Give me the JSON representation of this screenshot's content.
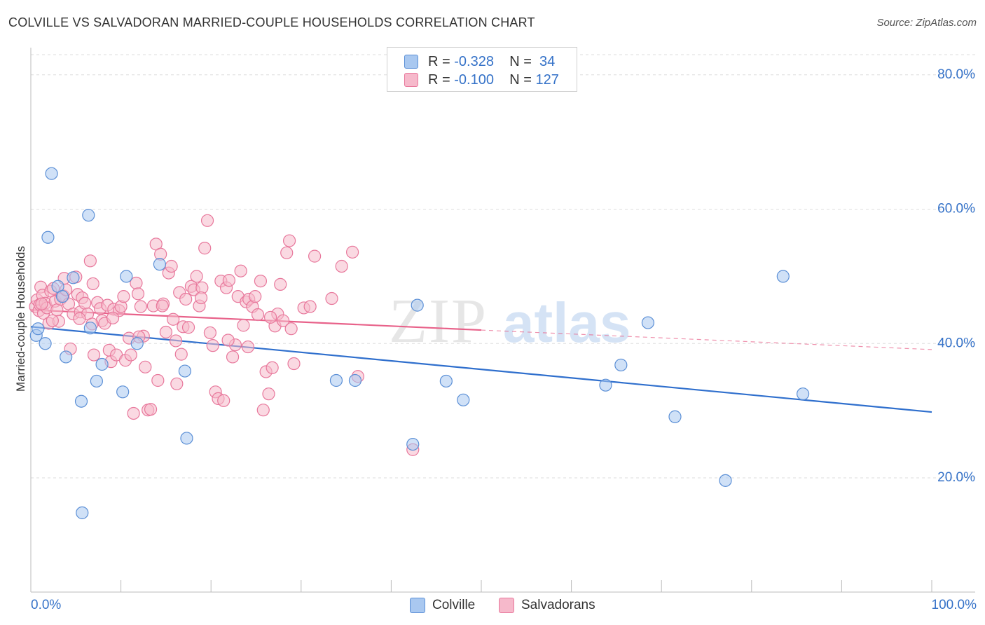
{
  "title": "COLVILLE VS SALVADORAN MARRIED-COUPLE HOUSEHOLDS CORRELATION CHART",
  "source": "Source: ZipAtlas.com",
  "watermark": {
    "zip": "ZIP",
    "atlas": "atlas"
  },
  "legend": {
    "rows": [
      {
        "r_label": "R =",
        "r_value": "-0.328",
        "n_label": "N =",
        "n_value": "34"
      },
      {
        "r_label": "R =",
        "r_value": "-0.100",
        "n_label": "N =",
        "n_value": "127"
      }
    ],
    "bottom": [
      "Colville",
      "Salvadorans"
    ]
  },
  "colors": {
    "colville_fill": "#a9c8f0",
    "colville_stroke": "#5b8fd6",
    "colville_line": "#2f6fcd",
    "salvadoran_fill": "#f6b9cb",
    "salvadoran_stroke": "#e8789c",
    "salvadoran_line": "#e8628a",
    "axis_label": "#3572c8",
    "grid": "#dddddd"
  },
  "chart_data": {
    "type": "scatter",
    "title": "COLVILLE VS SALVADORAN MARRIED-COUPLE HOUSEHOLDS CORRELATION CHART",
    "xlabel": "",
    "ylabel": "Married-couple Households",
    "xlim": [
      0,
      100
    ],
    "ylim": [
      3,
      83
    ],
    "x_tick_labels": [
      "0.0%",
      "100.0%"
    ],
    "y_ticks": [
      20,
      40,
      60,
      80
    ],
    "y_tick_labels": [
      "20.0%",
      "40.0%",
      "60.0%",
      "80.0%"
    ],
    "series": [
      {
        "name": "Colville",
        "r": -0.328,
        "n": 34,
        "trend": {
          "x": [
            0,
            100
          ],
          "y": [
            42.5,
            29.8
          ]
        },
        "points": [
          [
            0.6,
            41.2
          ],
          [
            1.6,
            40.0
          ],
          [
            0.8,
            42.2
          ],
          [
            2.3,
            65.3
          ],
          [
            1.9,
            55.8
          ],
          [
            3.0,
            48.5
          ],
          [
            3.5,
            47.0
          ],
          [
            4.7,
            49.8
          ],
          [
            6.4,
            59.1
          ],
          [
            3.9,
            38.0
          ],
          [
            5.6,
            31.4
          ],
          [
            6.6,
            42.3
          ],
          [
            7.3,
            34.4
          ],
          [
            7.9,
            36.9
          ],
          [
            10.2,
            32.8
          ],
          [
            10.6,
            50.0
          ],
          [
            11.8,
            40.0
          ],
          [
            14.3,
            51.8
          ],
          [
            17.1,
            35.9
          ],
          [
            17.3,
            25.9
          ],
          [
            5.7,
            14.8
          ],
          [
            33.9,
            34.5
          ],
          [
            36.0,
            34.5
          ],
          [
            42.4,
            25.0
          ],
          [
            42.9,
            45.7
          ],
          [
            46.1,
            34.4
          ],
          [
            48.0,
            31.6
          ],
          [
            63.8,
            33.8
          ],
          [
            65.5,
            36.8
          ],
          [
            68.5,
            43.1
          ],
          [
            71.5,
            29.1
          ],
          [
            77.1,
            19.6
          ],
          [
            83.5,
            50.0
          ],
          [
            85.7,
            32.5
          ]
        ]
      },
      {
        "name": "Salvadorans",
        "r": -0.1,
        "n": 127,
        "trend": {
          "x": [
            0,
            50
          ],
          "y": [
            45.0,
            42.0
          ]
        },
        "trend_dashed": {
          "x": [
            50,
            100
          ],
          "y": [
            42.0,
            39.1
          ]
        },
        "points": [
          [
            0.5,
            45.5
          ],
          [
            0.7,
            46.5
          ],
          [
            0.9,
            44.9
          ],
          [
            1.0,
            45.8
          ],
          [
            1.1,
            48.4
          ],
          [
            1.3,
            47.2
          ],
          [
            1.4,
            44.5
          ],
          [
            1.6,
            46.0
          ],
          [
            1.8,
            45.3
          ],
          [
            2.0,
            43.0
          ],
          [
            2.2,
            47.8
          ],
          [
            2.5,
            48.2
          ],
          [
            2.7,
            46.3
          ],
          [
            2.9,
            45.0
          ],
          [
            3.1,
            43.3
          ],
          [
            3.3,
            46.6
          ],
          [
            3.6,
            47.1
          ],
          [
            3.9,
            48.0
          ],
          [
            4.2,
            45.9
          ],
          [
            4.4,
            39.2
          ],
          [
            4.7,
            44.4
          ],
          [
            5.0,
            49.9
          ],
          [
            5.2,
            47.3
          ],
          [
            5.5,
            44.7
          ],
          [
            5.7,
            46.8
          ],
          [
            6.0,
            46.0
          ],
          [
            6.3,
            44.4
          ],
          [
            6.6,
            52.3
          ],
          [
            6.9,
            48.9
          ],
          [
            7.0,
            38.3
          ],
          [
            7.4,
            46.1
          ],
          [
            7.7,
            45.2
          ],
          [
            7.9,
            43.4
          ],
          [
            8.2,
            43.0
          ],
          [
            8.5,
            45.7
          ],
          [
            8.7,
            39.0
          ],
          [
            8.9,
            37.3
          ],
          [
            9.2,
            45.1
          ],
          [
            9.5,
            38.3
          ],
          [
            9.8,
            44.9
          ],
          [
            10.0,
            45.5
          ],
          [
            10.3,
            47.0
          ],
          [
            10.5,
            37.5
          ],
          [
            10.9,
            40.8
          ],
          [
            11.1,
            38.3
          ],
          [
            11.4,
            29.6
          ],
          [
            11.7,
            49.0
          ],
          [
            11.9,
            47.4
          ],
          [
            12.2,
            45.5
          ],
          [
            12.5,
            41.1
          ],
          [
            12.7,
            36.5
          ],
          [
            13.0,
            30.1
          ],
          [
            13.3,
            30.2
          ],
          [
            13.6,
            45.6
          ],
          [
            13.9,
            54.8
          ],
          [
            14.1,
            34.5
          ],
          [
            14.4,
            53.3
          ],
          [
            14.7,
            45.9
          ],
          [
            15.0,
            41.7
          ],
          [
            15.3,
            50.5
          ],
          [
            15.6,
            51.5
          ],
          [
            15.8,
            43.6
          ],
          [
            16.2,
            34.0
          ],
          [
            16.5,
            47.6
          ],
          [
            16.7,
            38.4
          ],
          [
            16.9,
            42.5
          ],
          [
            17.2,
            46.6
          ],
          [
            17.5,
            42.4
          ],
          [
            17.8,
            48.5
          ],
          [
            18.1,
            48.0
          ],
          [
            18.4,
            50.0
          ],
          [
            18.7,
            45.6
          ],
          [
            19.0,
            48.3
          ],
          [
            19.3,
            54.2
          ],
          [
            19.6,
            58.3
          ],
          [
            19.9,
            41.6
          ],
          [
            20.2,
            39.7
          ],
          [
            20.5,
            32.8
          ],
          [
            20.8,
            31.8
          ],
          [
            21.1,
            49.3
          ],
          [
            21.4,
            31.5
          ],
          [
            21.7,
            48.3
          ],
          [
            22.0,
            49.4
          ],
          [
            22.4,
            38.0
          ],
          [
            22.7,
            39.8
          ],
          [
            23.0,
            47.0
          ],
          [
            23.3,
            50.8
          ],
          [
            23.6,
            42.7
          ],
          [
            23.9,
            46.2
          ],
          [
            24.2,
            46.6
          ],
          [
            24.6,
            45.5
          ],
          [
            24.9,
            47.0
          ],
          [
            25.2,
            44.3
          ],
          [
            25.5,
            49.3
          ],
          [
            25.8,
            30.1
          ],
          [
            26.1,
            35.8
          ],
          [
            26.4,
            32.5
          ],
          [
            26.8,
            36.4
          ],
          [
            27.1,
            42.6
          ],
          [
            27.4,
            44.4
          ],
          [
            27.7,
            48.8
          ],
          [
            28.0,
            43.4
          ],
          [
            28.4,
            53.5
          ],
          [
            28.7,
            55.3
          ],
          [
            29.2,
            37.0
          ],
          [
            30.3,
            45.3
          ],
          [
            31.0,
            45.5
          ],
          [
            31.5,
            53.0
          ],
          [
            33.4,
            46.7
          ],
          [
            34.5,
            51.5
          ],
          [
            35.7,
            53.6
          ],
          [
            36.3,
            35.1
          ],
          [
            42.4,
            24.2
          ],
          [
            1.2,
            45.9
          ],
          [
            2.4,
            43.4
          ],
          [
            3.7,
            49.7
          ],
          [
            5.4,
            43.7
          ],
          [
            6.8,
            42.9
          ],
          [
            9.1,
            43.8
          ],
          [
            12.0,
            41.0
          ],
          [
            14.6,
            45.6
          ],
          [
            16.1,
            40.4
          ],
          [
            18.9,
            46.8
          ],
          [
            21.9,
            40.5
          ],
          [
            24.1,
            39.5
          ],
          [
            26.6,
            43.9
          ],
          [
            28.9,
            42.2
          ]
        ]
      }
    ]
  }
}
